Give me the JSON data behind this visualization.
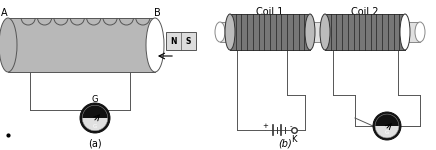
{
  "bg_color": "#ffffff",
  "coil_body_color": "#b8b8b8",
  "coil_dark_color": "#555555",
  "coil_stripe_color": "#333333",
  "coil2_body_color": "#888888",
  "bar_color": "#d8d8d8",
  "bar_edge": "#888888",
  "wire_color": "#555555",
  "galv_outer": "#111111",
  "galv_face_light": "#cccccc",
  "galv_face_dark": "#111111",
  "magnet_color": "#dddddd",
  "magnet_edge": "#555555",
  "label_A": "A",
  "label_B": "B",
  "label_coil1": "Coil 1",
  "label_coil2": "Coil 2",
  "label_a_fig": "(a)",
  "label_b_fig": "(b)",
  "label_G": "G",
  "label_K": "K",
  "label_N": "N",
  "label_S": "S",
  "lw": 0.7,
  "fig_w": 4.36,
  "fig_h": 1.5,
  "dpi": 100
}
